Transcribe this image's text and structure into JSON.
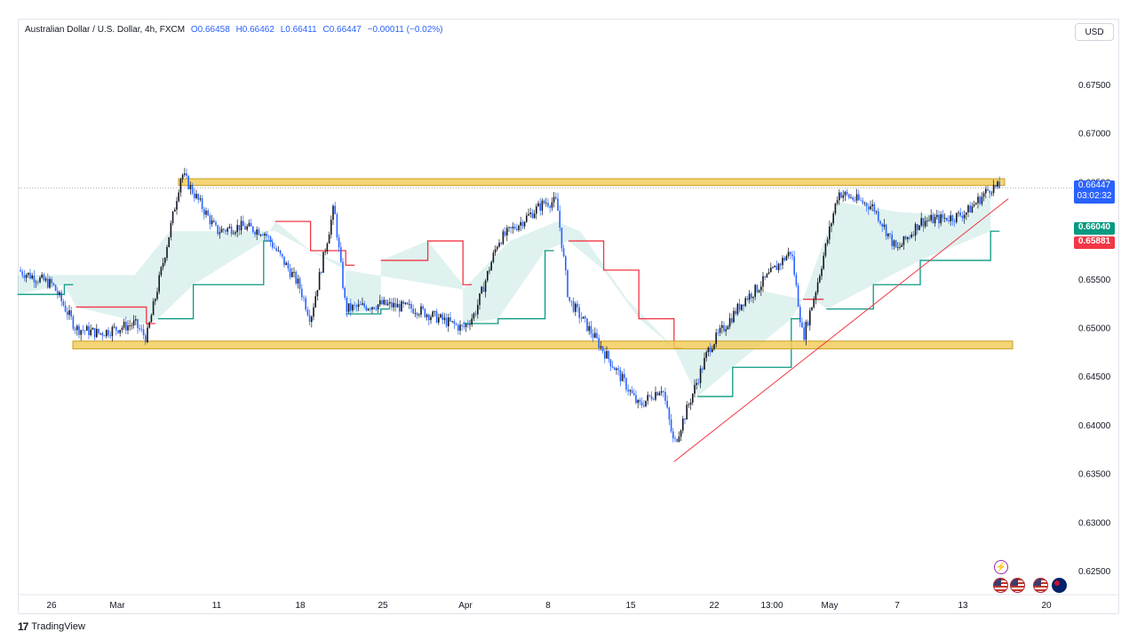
{
  "legend": {
    "symbol": "Australian Dollar / U.S. Dollar, 4h, FXCM",
    "open": "O0.66458",
    "high": "H0.66462",
    "low": "L0.66411",
    "close": "C0.66447",
    "change": "−0.00011 (−0.02%)"
  },
  "currency": "USD",
  "price_tags": {
    "last_price": "0.66447",
    "countdown": "03:02:32",
    "green_level": "0.66040",
    "red_level": "0.65881"
  },
  "footer": {
    "brand": "TradingView",
    "logo": "17"
  },
  "icons": {
    "alert": "lightning-icon",
    "event_flags": [
      "us-flag-icon",
      "us-flag-icon",
      "us-flag-icon",
      "au-flag-icon"
    ]
  },
  "colors": {
    "up": "#089981",
    "down": "#f23645",
    "candle_blue": "#2962ff",
    "candle_dark": "#131722",
    "zone": "#f2cc5c",
    "zone_border": "#c9a227",
    "trendline": "#f23645",
    "grid_text": "#131722"
  },
  "chart_data": {
    "type": "candlestick",
    "symbol": "AUDUSD",
    "timeframe": "4h",
    "y_ticks": [
      "0.67500",
      "0.67000",
      "0.66500",
      "0.66000",
      "0.65500",
      "0.65000",
      "0.64500",
      "0.64000",
      "0.63500",
      "0.63000",
      "0.62500"
    ],
    "x_ticks": [
      "26",
      "Mar",
      "11",
      "18",
      "25",
      "Apr",
      "8",
      "15",
      "22",
      "13:00",
      "May",
      "7",
      "13",
      "20"
    ],
    "ylim": [
      0.6225,
      0.6795
    ],
    "resistance_zone": [
      0.6647,
      0.6654
    ],
    "support_zone": [
      0.6479,
      0.6487
    ],
    "trendline": {
      "from": [
        "Apr 19",
        0.6363
      ],
      "to": [
        "May 16",
        0.6617
      ]
    },
    "price_path": [
      [
        "Feb 23",
        0.656
      ],
      [
        "Feb 26",
        0.6545
      ],
      [
        "Feb 28",
        0.65
      ],
      [
        "Mar 1",
        0.6495
      ],
      [
        "Mar 4",
        0.6505
      ],
      [
        "Mar 5",
        0.649
      ],
      [
        "Mar 7",
        0.66
      ],
      [
        "Mar 8",
        0.666
      ],
      [
        "Mar 11",
        0.66
      ],
      [
        "Mar 13",
        0.6605
      ],
      [
        "Mar 15",
        0.66
      ],
      [
        "Mar 18",
        0.6545
      ],
      [
        "Mar 19",
        0.651
      ],
      [
        "Mar 21",
        0.6625
      ],
      [
        "Mar 22",
        0.652
      ],
      [
        "Mar 25",
        0.6525
      ],
      [
        "Mar 28",
        0.652
      ],
      [
        "Apr 1",
        0.65
      ],
      [
        "Apr 2",
        0.6515
      ],
      [
        "Apr 4",
        0.659
      ],
      [
        "Apr 8",
        0.663
      ],
      [
        "Apr 9",
        0.663
      ],
      [
        "Apr 10",
        0.653
      ],
      [
        "Apr 12",
        0.6495
      ],
      [
        "Apr 15",
        0.644
      ],
      [
        "Apr 16",
        0.642
      ],
      [
        "Apr 18",
        0.644
      ],
      [
        "Apr 19",
        0.638
      ],
      [
        "Apr 22",
        0.648
      ],
      [
        "Apr 25",
        0.653
      ],
      [
        "Apr 26",
        0.654
      ],
      [
        "Apr 29",
        0.658
      ],
      [
        "Apr 30",
        0.649
      ],
      [
        "May 1",
        0.6535
      ],
      [
        "May 3",
        0.664
      ],
      [
        "May 6",
        0.6625
      ],
      [
        "May 8",
        0.658
      ],
      [
        "May 10",
        0.661
      ],
      [
        "May 13",
        0.6615
      ],
      [
        "May 14",
        0.662
      ],
      [
        "May 16",
        0.6645
      ]
    ],
    "cloud_upper": [
      [
        "Feb 23",
        0.6555
      ],
      [
        "Mar 4",
        0.6555
      ],
      [
        "Mar 7",
        0.66
      ],
      [
        "Mar 13",
        0.66
      ],
      [
        "Mar 16",
        0.66
      ],
      [
        "Mar 22",
        0.656
      ],
      [
        "Apr 1",
        0.654
      ],
      [
        "Apr 5",
        0.659
      ],
      [
        "Apr 9",
        0.661
      ],
      [
        "Apr 11",
        0.66
      ],
      [
        "Apr 15",
        0.653
      ],
      [
        "Apr 19",
        0.648
      ],
      [
        "Apr 22",
        0.648
      ],
      [
        "Apr 26",
        0.654
      ],
      [
        "Apr 30",
        0.653
      ],
      [
        "May 3",
        0.663
      ],
      [
        "May 8",
        0.662
      ],
      [
        "May 14",
        0.6615
      ],
      [
        "May 16",
        0.664
      ]
    ],
    "supertrend": {
      "up_color": "#089981",
      "down_color": "#f23645",
      "segments": [
        {
          "trend": "up",
          "points": [
            [
              "Feb 23",
              0.6535
            ],
            [
              "Feb 27",
              0.6545
            ]
          ]
        },
        {
          "trend": "down",
          "points": [
            [
              "Feb 28",
              0.6522
            ],
            [
              "Mar 5",
              0.6505
            ]
          ]
        },
        {
          "trend": "up",
          "points": [
            [
              "Mar 6",
              0.651
            ],
            [
              "Mar 9",
              0.6545
            ],
            [
              "Mar 15",
              0.659
            ]
          ]
        },
        {
          "trend": "down",
          "points": [
            [
              "Mar 16",
              0.661
            ],
            [
              "Mar 19",
              0.658
            ],
            [
              "Mar 22",
              0.6565
            ]
          ]
        },
        {
          "trend": "up",
          "points": [
            [
              "Mar 22",
              0.6515
            ],
            [
              "Mar 25",
              0.652
            ]
          ]
        },
        {
          "trend": "down",
          "points": [
            [
              "Mar 25",
              0.657
            ],
            [
              "Mar 29",
              0.659
            ],
            [
              "Apr 1",
              0.6545
            ]
          ]
        },
        {
          "trend": "up",
          "points": [
            [
              "Apr 1",
              0.6505
            ],
            [
              "Apr 4",
              0.651
            ],
            [
              "Apr 8",
              0.658
            ]
          ]
        },
        {
          "trend": "down",
          "points": [
            [
              "Apr 10",
              0.659
            ],
            [
              "Apr 13",
              0.656
            ],
            [
              "Apr 16",
              0.651
            ],
            [
              "Apr 19",
              0.648
            ]
          ]
        },
        {
          "trend": "up",
          "points": [
            [
              "Apr 21",
              0.643
            ],
            [
              "Apr 24",
              0.646
            ],
            [
              "Apr 29",
              0.651
            ]
          ]
        },
        {
          "trend": "down",
          "points": [
            [
              "Apr 30",
              0.653
            ],
            [
              "May 1",
              0.653
            ]
          ]
        },
        {
          "trend": "up",
          "points": [
            [
              "May 2",
              0.652
            ],
            [
              "May 6",
              0.6545
            ],
            [
              "May 10",
              0.657
            ],
            [
              "May 16",
              0.66
            ]
          ]
        }
      ]
    }
  }
}
